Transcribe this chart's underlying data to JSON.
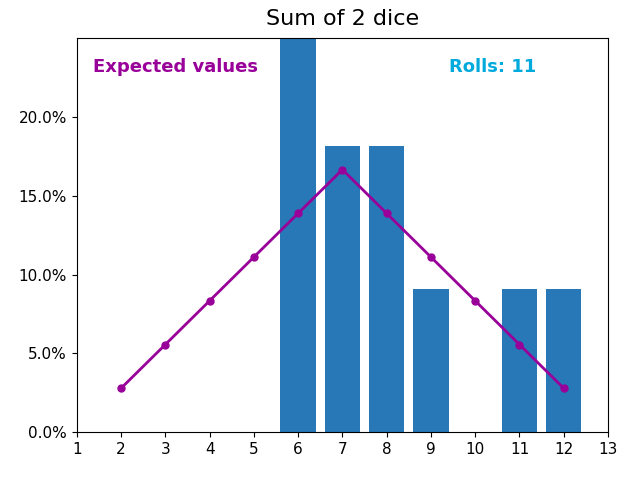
{
  "title": "Sum of 2 dice",
  "rolls": 11,
  "bar_positions": [
    6,
    7,
    8,
    9,
    11,
    12
  ],
  "bar_heights": [
    0.2727,
    0.1818,
    0.1818,
    0.0909,
    0.0909,
    0.0909
  ],
  "bar_color": "#2878B8",
  "expected_x": [
    2,
    3,
    4,
    5,
    6,
    7,
    8,
    9,
    10,
    11,
    12
  ],
  "expected_y": [
    0.02778,
    0.05556,
    0.08333,
    0.11111,
    0.13889,
    0.16667,
    0.13889,
    0.11111,
    0.08333,
    0.05556,
    0.02778
  ],
  "expected_color": "#990099",
  "label_expected": "Expected values",
  "label_rolls": "Rolls: 11",
  "label_rolls_color": "#00AADD",
  "label_expected_color": "#990099",
  "xlim": [
    1,
    13
  ],
  "ylim": [
    0,
    0.25
  ],
  "yticks": [
    0.0,
    0.05,
    0.1,
    0.15,
    0.2
  ],
  "ytick_labels": [
    "0.0%",
    "5.0%",
    "10.0%",
    "15.0%",
    "20.0%"
  ],
  "xticks": [
    1,
    2,
    3,
    4,
    5,
    6,
    7,
    8,
    9,
    10,
    11,
    12,
    13
  ],
  "bar_width": 0.8,
  "figsize": [
    6.4,
    4.8
  ],
  "dpi": 100
}
